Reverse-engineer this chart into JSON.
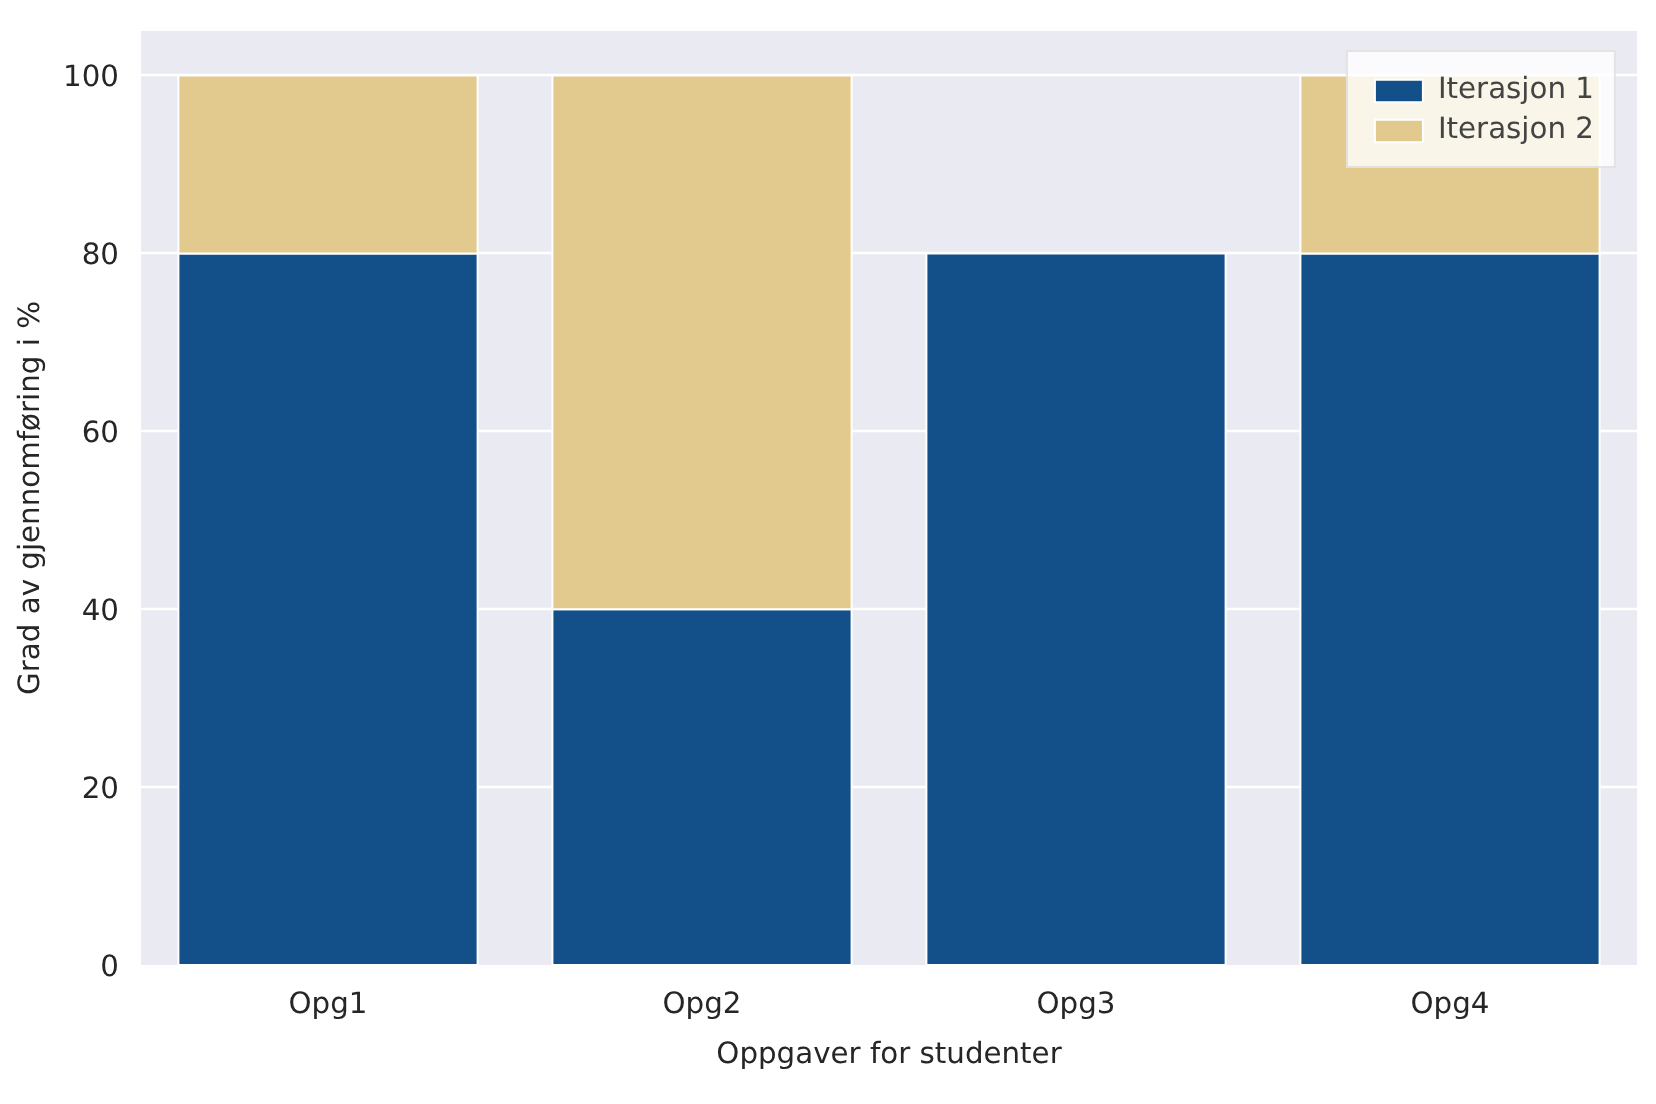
{
  "chart_data": {
    "type": "bar",
    "stacked": true,
    "xlabel": "Oppgaver for studenter",
    "ylabel": "Grad av gjennomføring i %",
    "categories": [
      "Opg1",
      "Opg2",
      "Opg3",
      "Opg4"
    ],
    "series": [
      {
        "name": "Iterasjon 1",
        "color": "#13508a",
        "values": [
          80,
          40,
          80,
          80
        ]
      },
      {
        "name": "Iterasjon 2",
        "color": "#e2ca8e",
        "values": [
          20,
          60,
          null,
          20
        ]
      }
    ],
    "ylim": [
      0,
      105
    ],
    "yticks": [
      0,
      20,
      40,
      60,
      80,
      100
    ],
    "grid": "y",
    "legend": "top right"
  }
}
